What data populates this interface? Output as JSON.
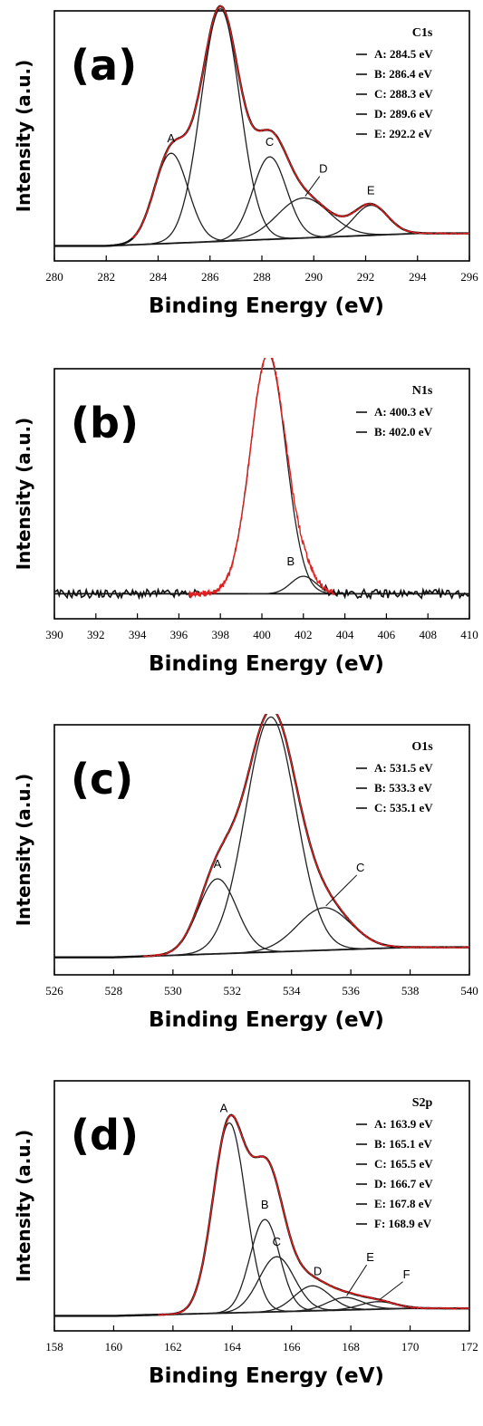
{
  "chart_data": [
    {
      "type": "line",
      "panel_label": "(a)",
      "legend_title": "C1s",
      "xlabel": "Binding Energy (eV)",
      "ylabel": "Intensity (a.u.)",
      "xlim": [
        280,
        296
      ],
      "xticks": [
        280,
        282,
        284,
        286,
        288,
        290,
        292,
        294,
        296
      ],
      "legend_placement": "top-right",
      "peaks": [
        {
          "name": "A",
          "legend": "A: 284.5 eV",
          "center": 284.5,
          "height": 0.36,
          "width": 0.65
        },
        {
          "name": "B",
          "legend": "B: 286.4 eV",
          "center": 286.4,
          "height": 0.93,
          "width": 0.75
        },
        {
          "name": "C",
          "legend": "C: 288.3 eV",
          "center": 288.3,
          "height": 0.33,
          "width": 0.65
        },
        {
          "name": "D",
          "legend": "D: 289.6 eV",
          "center": 289.6,
          "height": 0.16,
          "width": 1.0
        },
        {
          "name": "E",
          "legend": "E: 292.2 eV",
          "center": 292.2,
          "height": 0.12,
          "width": 0.65
        }
      ]
    },
    {
      "type": "line",
      "panel_label": "(b)",
      "legend_title": "N1s",
      "xlabel": "Binding Energy (eV)",
      "ylabel": "Intensity (a.u.)",
      "xlim": [
        390,
        410
      ],
      "xticks": [
        390,
        392,
        394,
        396,
        398,
        400,
        402,
        404,
        406,
        408,
        410
      ],
      "legend_placement": "top-right",
      "peaks": [
        {
          "name": "A",
          "legend": "A: 400.3  eV",
          "center": 400.3,
          "height": 0.96,
          "width": 0.85
        },
        {
          "name": "B",
          "legend": "B: 402.0  eV",
          "center": 402.0,
          "height": 0.07,
          "width": 0.6
        }
      ]
    },
    {
      "type": "line",
      "panel_label": "(c)",
      "legend_title": "O1s",
      "xlabel": "Binding Energy (eV)",
      "ylabel": "Intensity (a.u.)",
      "xlim": [
        526,
        540
      ],
      "xticks": [
        526,
        528,
        530,
        532,
        534,
        536,
        538,
        540
      ],
      "legend_placement": "top-right",
      "peaks": [
        {
          "name": "A",
          "legend": "A: 531.5 eV",
          "center": 531.5,
          "height": 0.3,
          "width": 0.65
        },
        {
          "name": "B",
          "legend": "B: 533.3 eV",
          "center": 533.3,
          "height": 0.94,
          "width": 0.85
        },
        {
          "name": "C",
          "legend": "C: 535.1 eV",
          "center": 535.1,
          "height": 0.17,
          "width": 0.9
        }
      ]
    },
    {
      "type": "line",
      "panel_label": "(d)",
      "legend_title": "S2p",
      "xlabel": "Binding Energy (eV)",
      "ylabel": "Intensity (a.u.)",
      "xlim": [
        158,
        172
      ],
      "xticks": [
        158,
        160,
        162,
        164,
        166,
        168,
        170,
        172
      ],
      "legend_placement": "top-right",
      "peaks": [
        {
          "name": "A",
          "legend": "A: 163.9 eV",
          "center": 163.9,
          "height": 0.76,
          "width": 0.55
        },
        {
          "name": "B",
          "legend": "B: 165.1 eV",
          "center": 165.1,
          "height": 0.37,
          "width": 0.5
        },
        {
          "name": "C",
          "legend": "C: 165.5 eV",
          "center": 165.5,
          "height": 0.22,
          "width": 0.6
        },
        {
          "name": "D",
          "legend": "D: 166.7 eV",
          "center": 166.7,
          "height": 0.1,
          "width": 0.6
        },
        {
          "name": "E",
          "legend": "E: 167.8 eV",
          "center": 167.8,
          "height": 0.05,
          "width": 0.6
        },
        {
          "name": "F",
          "legend": "F: 168.9 eV",
          "center": 168.9,
          "height": 0.03,
          "width": 0.6
        }
      ]
    }
  ],
  "colors": {
    "envelope": "#111111",
    "fit": "#e02020",
    "components": "#222222"
  }
}
